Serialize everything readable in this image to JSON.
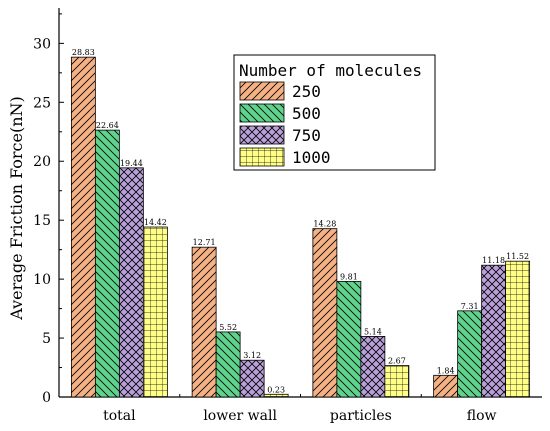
{
  "chart_data": {
    "type": "bar",
    "title": "",
    "xlabel": "",
    "ylabel": "Average Friction Force(nN)",
    "ylim": [
      0,
      33
    ],
    "yticks": [
      0,
      5,
      10,
      15,
      20,
      25,
      30
    ],
    "grid": false,
    "legend_placement": "upper-center",
    "legend_title": "Number of molecules",
    "categories": [
      "total",
      "lower wall",
      "particles",
      "flow"
    ],
    "series": [
      {
        "name": "250",
        "values": [
          28.83,
          12.71,
          14.28,
          1.84
        ],
        "labels": [
          "28.83",
          "12.71",
          "14.28",
          "1.84"
        ],
        "color": "#F4B183",
        "pattern": "diag-up"
      },
      {
        "name": "500",
        "values": [
          22.64,
          5.52,
          9.81,
          7.31
        ],
        "labels": [
          "22.64",
          "5.52",
          "9.81",
          "7.31"
        ],
        "color": "#5FD38D",
        "pattern": "diag-down"
      },
      {
        "name": "750",
        "values": [
          19.44,
          3.12,
          5.14,
          11.18
        ],
        "labels": [
          "19.44",
          "3.12",
          "5.14",
          "11.18"
        ],
        "color": "#B9A0D8",
        "pattern": "crosshatch"
      },
      {
        "name": "1000",
        "values": [
          14.42,
          0.23,
          2.67,
          11.52
        ],
        "labels": [
          "14.42",
          "0.23",
          "2.67",
          "11.52"
        ],
        "color": "#FFFF88",
        "pattern": "grid"
      }
    ]
  }
}
